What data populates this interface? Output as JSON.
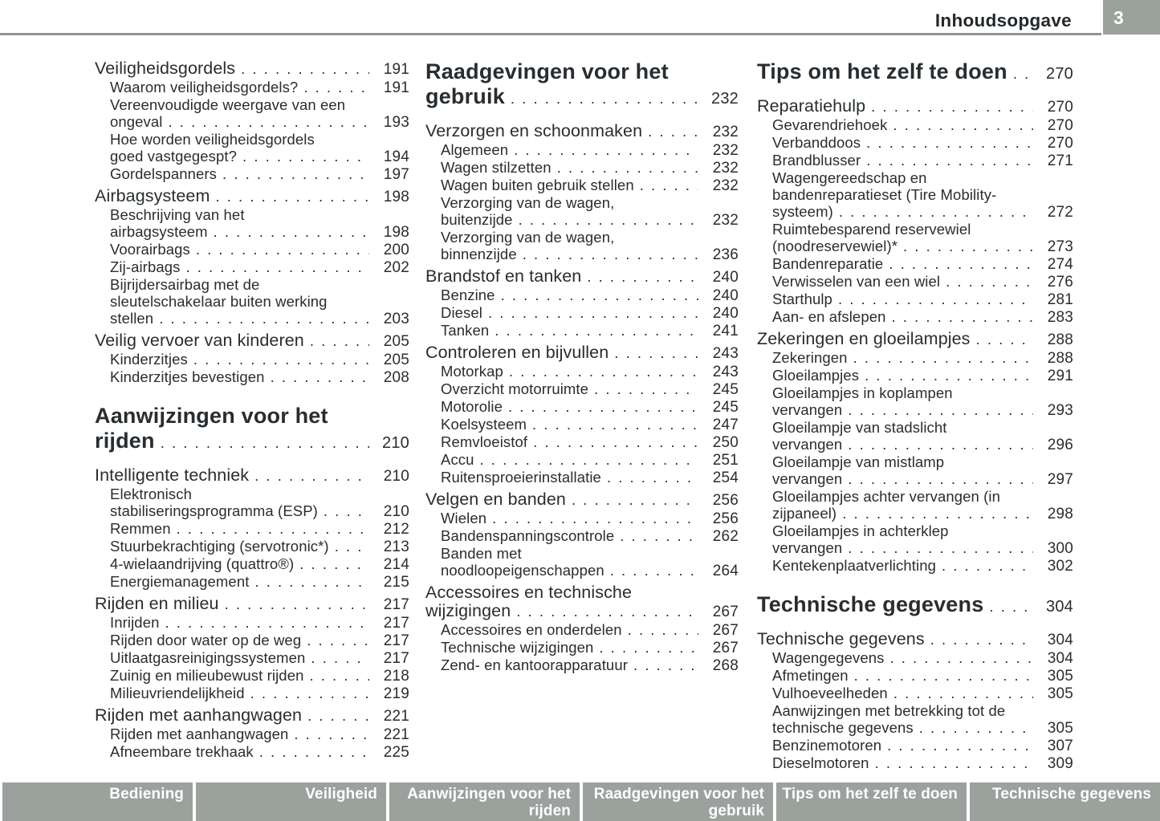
{
  "header": {
    "title": "Inhoudsopgave",
    "page_number": "3"
  },
  "toc": {
    "columns": [
      {
        "blocks": [
          {
            "type": "section",
            "label": "Veiligheidsgordels",
            "page": "191"
          },
          {
            "type": "item",
            "label": "Waarom veiligheidsgordels?",
            "page": "191"
          },
          {
            "type": "item",
            "label": "Vereenvoudigde weergave van een\nongeval",
            "page": "193"
          },
          {
            "type": "item",
            "label": "Hoe worden veiligheidsgordels\ngoed vastgegespt?",
            "page": "194"
          },
          {
            "type": "item",
            "label": "Gordelspanners",
            "page": "197"
          },
          {
            "type": "section",
            "label": "Airbagsysteem",
            "page": "198"
          },
          {
            "type": "item",
            "label": "Beschrijving van het\nairbagsysteem",
            "page": "198"
          },
          {
            "type": "item",
            "label": "Voorairbags",
            "page": "200"
          },
          {
            "type": "item",
            "label": "Zij-airbags",
            "page": "202"
          },
          {
            "type": "item",
            "label": "Bijrijdersairbag met de\nsleutelschakelaar buiten werking\nstellen",
            "page": "203"
          },
          {
            "type": "section",
            "label": "Veilig vervoer van kinderen",
            "page": "205"
          },
          {
            "type": "item",
            "label": "Kinderzitjes",
            "page": "205"
          },
          {
            "type": "item",
            "label": "Kinderzitjes bevestigen",
            "page": "208"
          },
          {
            "type": "chapter",
            "label": "Aanwijzingen voor het\nrijden",
            "page": "210"
          },
          {
            "type": "section",
            "label": "Intelligente techniek",
            "page": "210"
          },
          {
            "type": "item",
            "label": "Elektronisch\nstabiliseringsprogramma (ESP)",
            "page": "210"
          },
          {
            "type": "item",
            "label": "Remmen",
            "page": "212"
          },
          {
            "type": "item",
            "label": "Stuurbekrachtiging (servotronic*)",
            "page": "213"
          },
          {
            "type": "item",
            "label": "4-wielaandrijving (quattro®)",
            "page": "214"
          },
          {
            "type": "item",
            "label": "Energiemanagement",
            "page": "215"
          },
          {
            "type": "section",
            "label": "Rijden en milieu",
            "page": "217"
          },
          {
            "type": "item",
            "label": "Inrijden",
            "page": "217"
          },
          {
            "type": "item",
            "label": "Rijden door water op de weg",
            "page": "217"
          },
          {
            "type": "item",
            "label": "Uitlaatgasreinigingssystemen",
            "page": "217"
          },
          {
            "type": "item",
            "label": "Zuinig en milieubewust rijden",
            "page": "218"
          },
          {
            "type": "item",
            "label": "Milieuvriendelijkheid",
            "page": "219"
          },
          {
            "type": "section",
            "label": "Rijden met aanhangwagen",
            "page": "221"
          },
          {
            "type": "item",
            "label": "Rijden met aanhangwagen",
            "page": "221"
          },
          {
            "type": "item",
            "label": "Afneembare trekhaak",
            "page": "225"
          }
        ]
      },
      {
        "blocks": [
          {
            "type": "chapter",
            "label": "Raadgevingen voor het\ngebruik",
            "page": "232"
          },
          {
            "type": "section",
            "label": "Verzorgen en schoonmaken",
            "page": "232"
          },
          {
            "type": "item",
            "label": "Algemeen",
            "page": "232"
          },
          {
            "type": "item",
            "label": "Wagen stilzetten",
            "page": "232"
          },
          {
            "type": "item",
            "label": "Wagen buiten gebruik stellen",
            "page": "232"
          },
          {
            "type": "item",
            "label": "Verzorging van de wagen,\nbuitenzijde",
            "page": "232"
          },
          {
            "type": "item",
            "label": "Verzorging van de wagen,\nbinnenzijde",
            "page": "236"
          },
          {
            "type": "section",
            "label": "Brandstof en tanken",
            "page": "240"
          },
          {
            "type": "item",
            "label": "Benzine",
            "page": "240"
          },
          {
            "type": "item",
            "label": "Diesel",
            "page": "240"
          },
          {
            "type": "item",
            "label": "Tanken",
            "page": "241"
          },
          {
            "type": "section",
            "label": "Controleren en bijvullen",
            "page": "243"
          },
          {
            "type": "item",
            "label": "Motorkap",
            "page": "243"
          },
          {
            "type": "item",
            "label": "Overzicht motorruimte",
            "page": "245"
          },
          {
            "type": "item",
            "label": "Motorolie",
            "page": "245"
          },
          {
            "type": "item",
            "label": "Koelsysteem",
            "page": "247"
          },
          {
            "type": "item",
            "label": "Remvloeistof",
            "page": "250"
          },
          {
            "type": "item",
            "label": "Accu",
            "page": "251"
          },
          {
            "type": "item",
            "label": "Ruitensproeierinstallatie",
            "page": "254"
          },
          {
            "type": "section",
            "label": "Velgen en banden",
            "page": "256"
          },
          {
            "type": "item",
            "label": "Wielen",
            "page": "256"
          },
          {
            "type": "item",
            "label": "Bandenspanningscontrole",
            "page": "262"
          },
          {
            "type": "item",
            "label": "Banden met\nnoodloopeigenschappen",
            "page": "264"
          },
          {
            "type": "section",
            "label": "Accessoires en technische\nwijzigingen",
            "page": "267"
          },
          {
            "type": "item",
            "label": "Accessoires en onderdelen",
            "page": "267"
          },
          {
            "type": "item",
            "label": "Technische wijzigingen",
            "page": "267"
          },
          {
            "type": "item",
            "label": "Zend- en kantoorapparatuur",
            "page": "268"
          }
        ]
      },
      {
        "blocks": [
          {
            "type": "chapter",
            "label": "Tips om het zelf te doen",
            "page": "270"
          },
          {
            "type": "section",
            "label": "Reparatiehulp",
            "page": "270"
          },
          {
            "type": "item",
            "label": "Gevarendriehoek",
            "page": "270"
          },
          {
            "type": "item",
            "label": "Verbanddoos",
            "page": "270"
          },
          {
            "type": "item",
            "label": "Brandblusser",
            "page": "271"
          },
          {
            "type": "item",
            "label": "Wagengereedschap en\nbandenreparatieset (Tire Mobility-\nsysteem)",
            "page": "272"
          },
          {
            "type": "item",
            "label": "Ruimtebesparend reservewiel\n(noodreservewiel)*",
            "page": "273"
          },
          {
            "type": "item",
            "label": "Bandenreparatie",
            "page": "274"
          },
          {
            "type": "item",
            "label": "Verwisselen van een wiel",
            "page": "276"
          },
          {
            "type": "item",
            "label": "Starthulp",
            "page": "281"
          },
          {
            "type": "item",
            "label": "Aan- en afslepen",
            "page": "283"
          },
          {
            "type": "section",
            "label": "Zekeringen en gloeilampjes",
            "page": "288"
          },
          {
            "type": "item",
            "label": "Zekeringen",
            "page": "288"
          },
          {
            "type": "item",
            "label": "Gloeilampjes",
            "page": "291"
          },
          {
            "type": "item",
            "label": "Gloeilampjes in koplampen\nvervangen",
            "page": "293"
          },
          {
            "type": "item",
            "label": "Gloeilampje van stadslicht\nvervangen",
            "page": "296"
          },
          {
            "type": "item",
            "label": "Gloeilampje van mistlamp\nvervangen",
            "page": "297"
          },
          {
            "type": "item",
            "label": "Gloeilampjes achter vervangen (in\nzijpaneel)",
            "page": "298"
          },
          {
            "type": "item",
            "label": "Gloeilampjes in achterklep\nvervangen",
            "page": "300"
          },
          {
            "type": "item",
            "label": "Kentekenplaatverlichting",
            "page": "302"
          },
          {
            "type": "chapter",
            "label": "Technische gegevens",
            "page": "304"
          },
          {
            "type": "section",
            "label": "Technische gegevens",
            "page": "304"
          },
          {
            "type": "item",
            "label": "Wagengegevens",
            "page": "304"
          },
          {
            "type": "item",
            "label": "Afmetingen",
            "page": "305"
          },
          {
            "type": "item",
            "label": "Vulhoeveelheden",
            "page": "305"
          },
          {
            "type": "item",
            "label": "Aanwijzingen met betrekking tot de\ntechnische gegevens",
            "page": "305"
          },
          {
            "type": "item",
            "label": "Benzinemotoren",
            "page": "307"
          },
          {
            "type": "item",
            "label": "Dieselmotoren",
            "page": "309"
          }
        ]
      }
    ]
  },
  "footer": {
    "tabs": [
      "Bediening",
      "Veiligheid",
      "Aanwijzingen voor het\nrijden",
      "Raadgevingen voor het\ngebruik",
      "Tips om het zelf te doen",
      "Technische gegevens"
    ]
  },
  "colors": {
    "bar_gray": "#9ba19d",
    "rule_gray": "#8e9494",
    "text": "#282d31",
    "footer_text": "#ffffff"
  }
}
